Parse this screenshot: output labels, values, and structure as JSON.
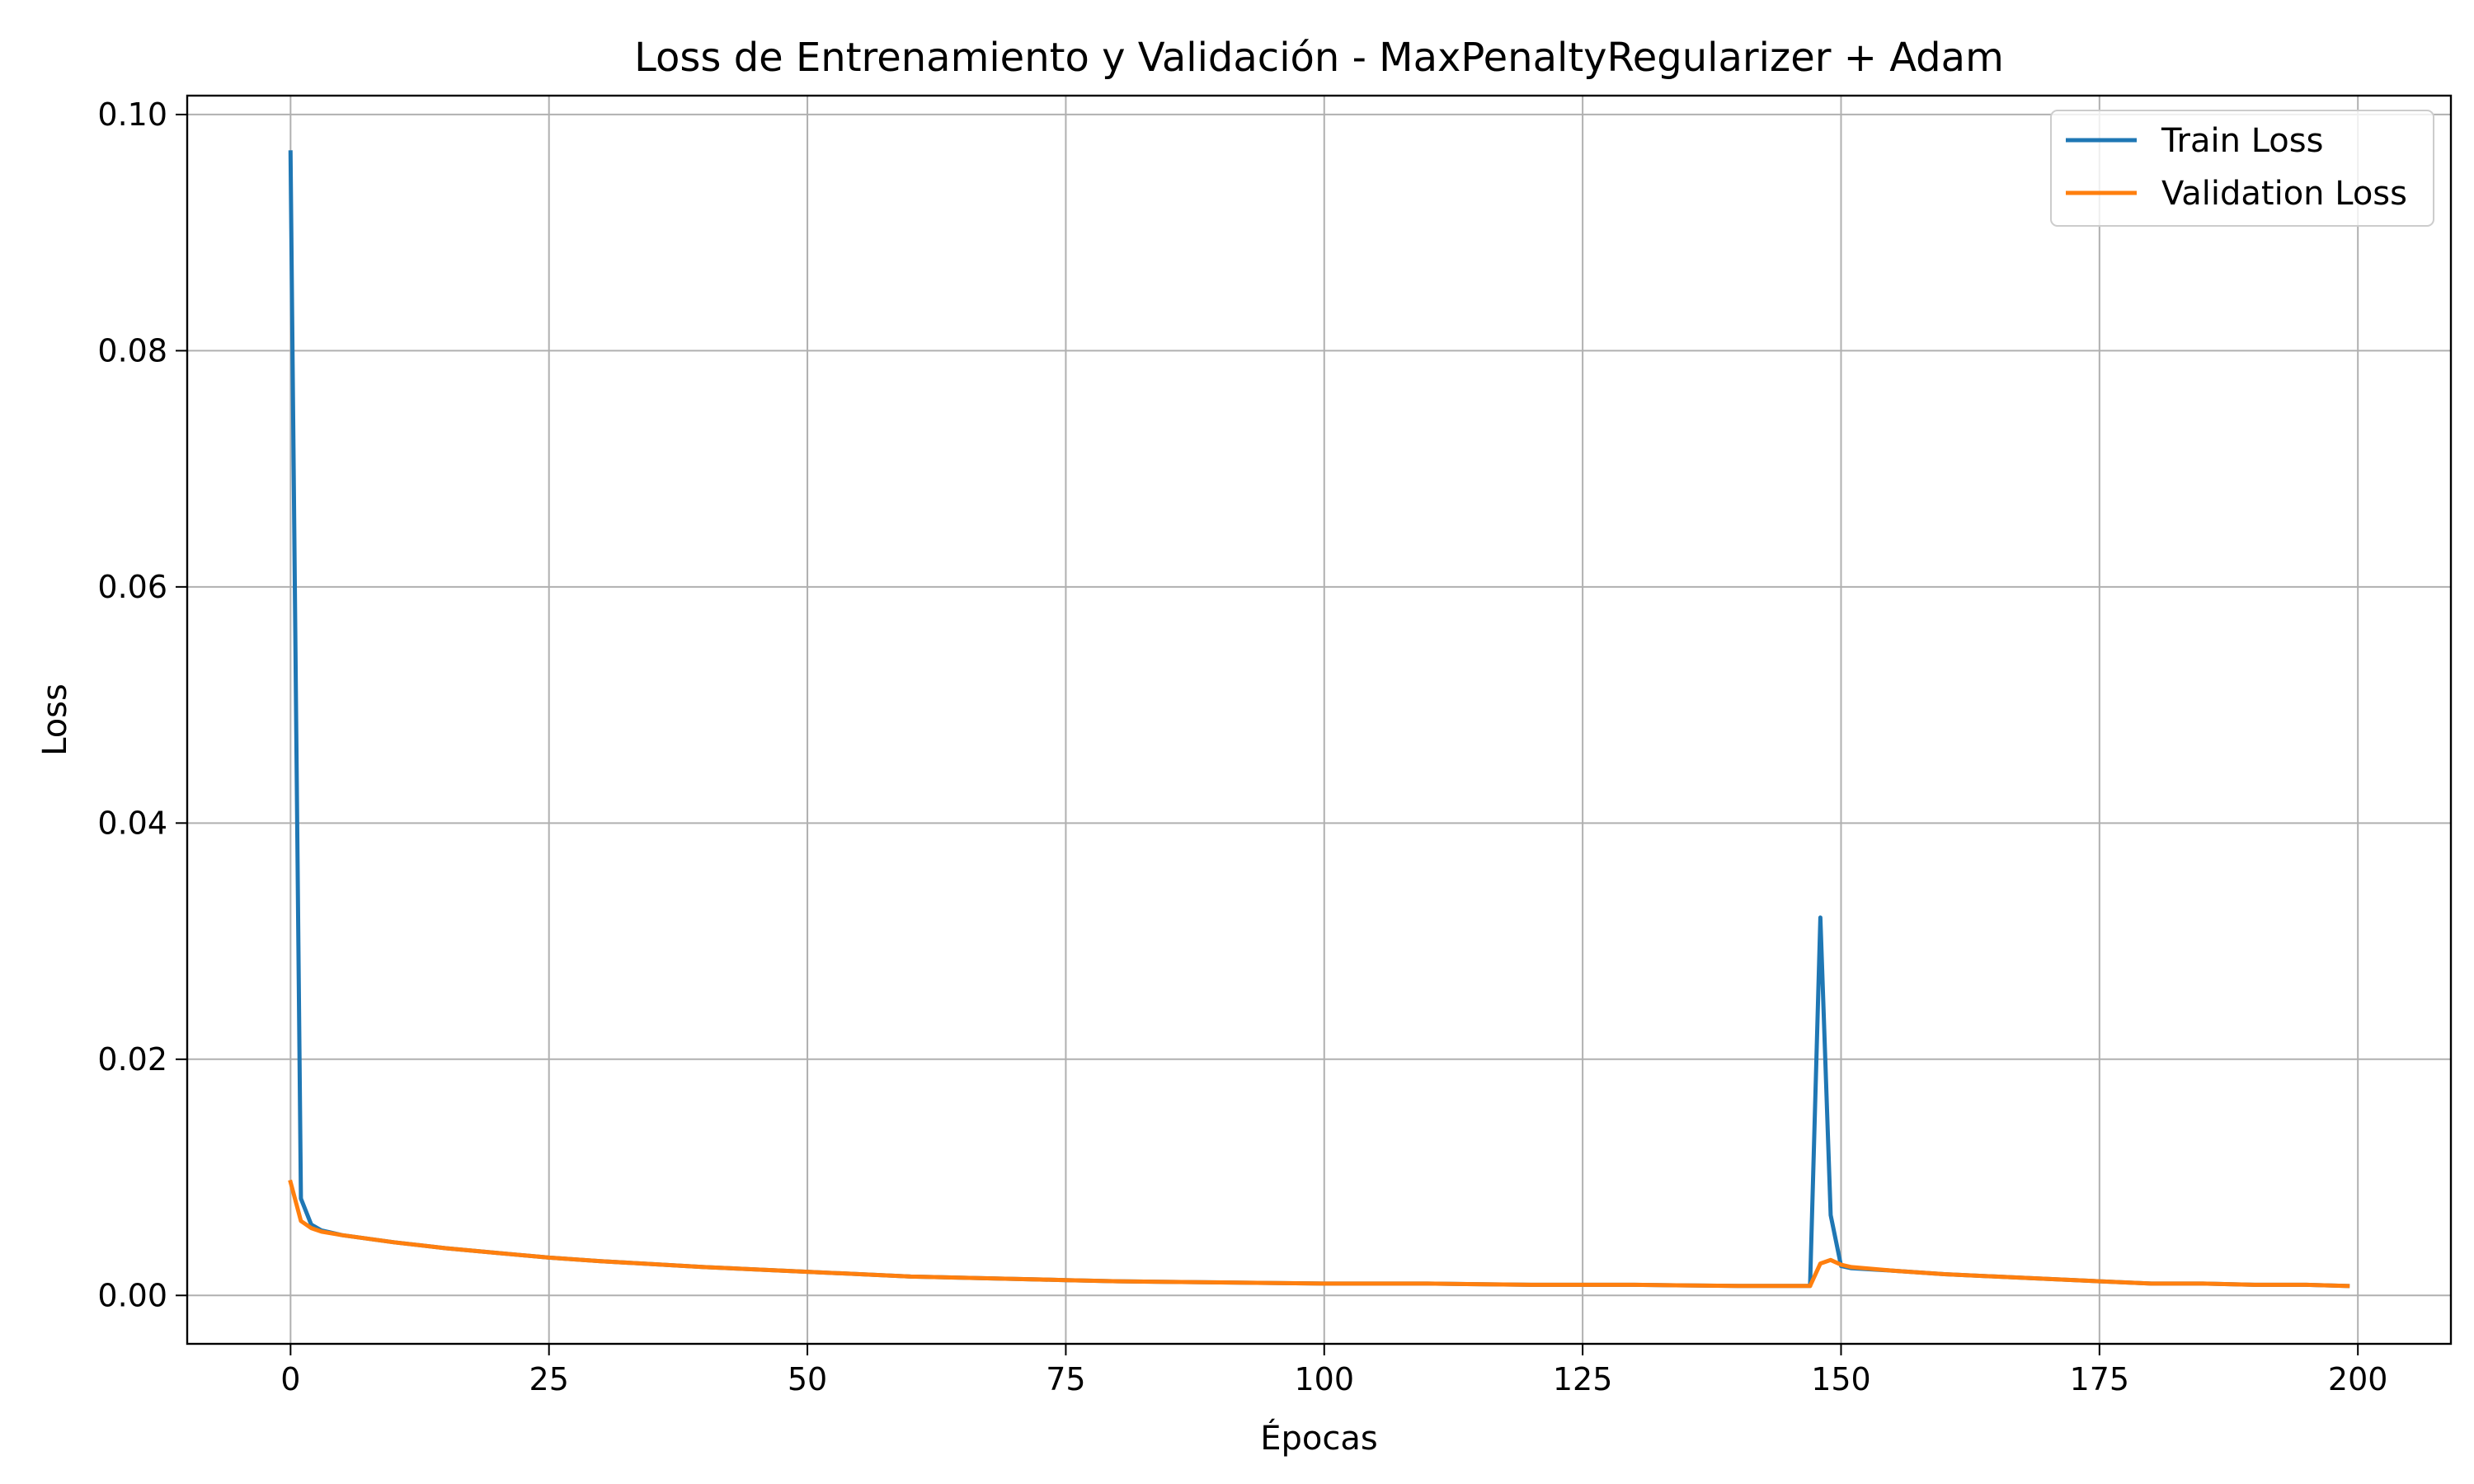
{
  "chart_data": {
    "type": "line",
    "title": "Loss de Entrenamiento y Validación - MaxPenaltyRegularizer + Adam",
    "xlabel": "Épocas",
    "ylabel": "Loss",
    "xlim": [
      -10,
      209
    ],
    "ylim": [
      -0.0041,
      0.1016
    ],
    "xticks": [
      0,
      25,
      50,
      75,
      100,
      125,
      150,
      175,
      200
    ],
    "xtick_labels": [
      "0",
      "25",
      "50",
      "75",
      "100",
      "125",
      "150",
      "175",
      "200"
    ],
    "yticks": [
      0.0,
      0.02,
      0.04,
      0.06,
      0.08,
      0.1
    ],
    "ytick_labels": [
      "0.00",
      "0.02",
      "0.04",
      "0.06",
      "0.08",
      "0.10"
    ],
    "grid": true,
    "legend": {
      "position": "top-right"
    },
    "series": [
      {
        "name": "Train Loss",
        "color": "#1f77b4",
        "points": [
          [
            0,
            0.0968
          ],
          [
            1,
            0.0082
          ],
          [
            2,
            0.006
          ],
          [
            3,
            0.0055
          ],
          [
            5,
            0.0051
          ],
          [
            10,
            0.0045
          ],
          [
            15,
            0.004
          ],
          [
            20,
            0.0036
          ],
          [
            25,
            0.0032
          ],
          [
            30,
            0.0029
          ],
          [
            40,
            0.0024
          ],
          [
            50,
            0.002
          ],
          [
            60,
            0.0016
          ],
          [
            70,
            0.0014
          ],
          [
            75,
            0.0013
          ],
          [
            80,
            0.0012
          ],
          [
            90,
            0.0011
          ],
          [
            100,
            0.001
          ],
          [
            110,
            0.001
          ],
          [
            120,
            0.0009
          ],
          [
            130,
            0.0009
          ],
          [
            140,
            0.0008
          ],
          [
            147,
            0.0008
          ],
          [
            148,
            0.032
          ],
          [
            149,
            0.0068
          ],
          [
            150,
            0.0025
          ],
          [
            151,
            0.0023
          ],
          [
            155,
            0.0021
          ],
          [
            160,
            0.0018
          ],
          [
            165,
            0.0016
          ],
          [
            170,
            0.0014
          ],
          [
            175,
            0.0012
          ],
          [
            180,
            0.001
          ],
          [
            185,
            0.001
          ],
          [
            190,
            0.0009
          ],
          [
            195,
            0.0009
          ],
          [
            199,
            0.0008
          ]
        ]
      },
      {
        "name": "Validation Loss",
        "color": "#ff7f0e",
        "points": [
          [
            0,
            0.0096
          ],
          [
            1,
            0.0063
          ],
          [
            2,
            0.0057
          ],
          [
            3,
            0.0054
          ],
          [
            5,
            0.0051
          ],
          [
            10,
            0.0045
          ],
          [
            15,
            0.004
          ],
          [
            20,
            0.0036
          ],
          [
            25,
            0.0032
          ],
          [
            30,
            0.0029
          ],
          [
            40,
            0.0024
          ],
          [
            50,
            0.002
          ],
          [
            60,
            0.0016
          ],
          [
            70,
            0.0014
          ],
          [
            75,
            0.0013
          ],
          [
            80,
            0.0012
          ],
          [
            90,
            0.0011
          ],
          [
            100,
            0.001
          ],
          [
            110,
            0.001
          ],
          [
            120,
            0.0009
          ],
          [
            130,
            0.0009
          ],
          [
            140,
            0.0008
          ],
          [
            147,
            0.0008
          ],
          [
            148,
            0.0027
          ],
          [
            149,
            0.003
          ],
          [
            150,
            0.0026
          ],
          [
            151,
            0.0024
          ],
          [
            155,
            0.0021
          ],
          [
            160,
            0.0018
          ],
          [
            165,
            0.0016
          ],
          [
            170,
            0.0014
          ],
          [
            175,
            0.0012
          ],
          [
            180,
            0.001
          ],
          [
            185,
            0.001
          ],
          [
            190,
            0.0009
          ],
          [
            195,
            0.0009
          ],
          [
            199,
            0.0008
          ]
        ]
      }
    ]
  }
}
